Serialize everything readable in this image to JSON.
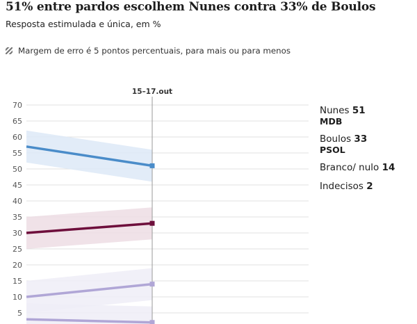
{
  "header": {
    "title": "51% entre pardos escolhem Nunes contra 33% de Boulos",
    "subtitle": "Resposta estimulada e única, em %",
    "note": "Margem de erro é 5 pontos percentuais, para mais ou para menos"
  },
  "chart_data": {
    "type": "line",
    "title": "51% entre pardos escolhem Nunes contra 33% de Boulos",
    "subtitle": "Resposta estimulada e única, em %",
    "x_marker_label": "15–17.out",
    "ylim": [
      0,
      70
    ],
    "y_ticks": [
      5,
      10,
      15,
      20,
      25,
      30,
      35,
      40,
      45,
      50,
      55,
      60,
      65,
      70
    ],
    "y_tick_labels": [
      "5",
      "10",
      "15",
      "20",
      "25",
      "30",
      "35",
      "40",
      "45",
      "50",
      "55",
      "60",
      "65",
      "70"
    ],
    "margin_of_error": 5,
    "grid": true,
    "legend_position": "right",
    "series": [
      {
        "name": "Nunes",
        "party": "MDB",
        "label_value": "51",
        "color": "#4a8cc9",
        "band_color": "#dde9f7",
        "start": 57,
        "end": 51
      },
      {
        "name": "Boulos",
        "party": "PSOL",
        "label_value": "33",
        "color": "#6e0f3c",
        "band_color": "#eddde4",
        "start": 30,
        "end": 33
      },
      {
        "name": "Branco/ nulo",
        "party": "",
        "label_value": "14",
        "color": "#b0a6d6",
        "band_color": "#eeedf7",
        "start": 10,
        "end": 14
      },
      {
        "name": "Indecisos",
        "party": "",
        "label_value": "2",
        "color": "#b0a6d6",
        "band_color": "#eeedf7",
        "start": 3,
        "end": 2
      }
    ]
  }
}
